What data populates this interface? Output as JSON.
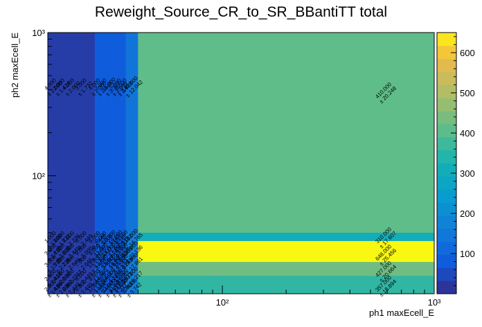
{
  "chart_data": {
    "type": "heatmap",
    "title": "Reweight_Source_CR_to_SR_BBantiTT total",
    "xlabel": "ph1 maxEcell_E",
    "ylabel": "ph2 maxEcell_E",
    "x_scale": "log",
    "y_scale": "log",
    "xlim": [
      15,
      1000
    ],
    "ylim": [
      15,
      1000
    ],
    "x_major_ticks": [
      {
        "value": 100,
        "label": "10²"
      },
      {
        "value": 1000,
        "label": "10³"
      }
    ],
    "y_major_ticks": [
      {
        "value": 100,
        "label": "10²"
      },
      {
        "value": 1000,
        "label": "10³"
      }
    ],
    "colorbar": {
      "min": 0,
      "max": 650,
      "ticks": [
        {
          "value": 100,
          "label": "100"
        },
        {
          "value": 200,
          "label": "200"
        },
        {
          "value": 300,
          "label": "300"
        },
        {
          "value": 400,
          "label": "400"
        },
        {
          "value": 500,
          "label": "500"
        },
        {
          "value": 600,
          "label": "600"
        }
      ]
    },
    "x_edges": [
      15,
      25,
      35,
      40,
      1000
    ],
    "y_edges": [
      15,
      20,
      25,
      30,
      35,
      40,
      1000
    ],
    "cells": [
      {
        "x0": 15,
        "x1": 25,
        "y0": 40,
        "y1": 1000,
        "value": 30
      },
      {
        "x0": 25,
        "x1": 35,
        "y0": 40,
        "y1": 1000,
        "value": 80
      },
      {
        "x0": 35,
        "x1": 40,
        "y0": 40,
        "y1": 1000,
        "value": 140
      },
      {
        "x0": 40,
        "x1": 1000,
        "y0": 40,
        "y1": 1000,
        "value": 410
      },
      {
        "x0": 15,
        "x1": 25,
        "y0": 15,
        "y1": 40,
        "value": 30
      },
      {
        "x0": 25,
        "x1": 35,
        "y0": 15,
        "y1": 40,
        "value": 80
      },
      {
        "x0": 35,
        "x1": 40,
        "y0": 15,
        "y1": 40,
        "value": 160
      },
      {
        "x0": 40,
        "x1": 1000,
        "y0": 35,
        "y1": 40,
        "value": 310
      },
      {
        "x0": 40,
        "x1": 1000,
        "y0": 25,
        "y1": 35,
        "value": 648
      },
      {
        "x0": 40,
        "x1": 1000,
        "y0": 20,
        "y1": 25,
        "value": 427
      },
      {
        "x0": 40,
        "x1": 1000,
        "y0": 15,
        "y1": 20,
        "value": 357
      }
    ],
    "cell_labels": [
      {
        "x": 590,
        "y": 380,
        "value": "410.000",
        "error": "± 20.248"
      },
      {
        "x": 590,
        "y": 37,
        "value": "310.000",
        "error": "± 17.607"
      },
      {
        "x": 590,
        "y": 28,
        "value": "648.000",
        "error": "± 25.456"
      },
      {
        "x": 590,
        "y": 21.5,
        "value": "427.000",
        "error": "± 20.664"
      },
      {
        "x": 590,
        "y": 17,
        "value": "357.000",
        "error": "± 18.894"
      },
      {
        "x": 15.8,
        "y": 420,
        "value": "4.000",
        "error": "± 2.000"
      },
      {
        "x": 17.3,
        "y": 420,
        "value": "2.000",
        "error": "± 1.414"
      },
      {
        "x": 19.2,
        "y": 420,
        "value": "4.000",
        "error": "± 2.000"
      },
      {
        "x": 22,
        "y": 420,
        "value": "3.000",
        "error": "± 1.732"
      },
      {
        "x": 25.5,
        "y": 420,
        "value": "4.000",
        "error": "± 2.000"
      },
      {
        "x": 27.3,
        "y": 420,
        "value": "7.000",
        "error": "± 2.646"
      },
      {
        "x": 29.8,
        "y": 420,
        "value": "11.000",
        "error": "± 3.317"
      },
      {
        "x": 32,
        "y": 420,
        "value": "7.000",
        "error": "± 2.646"
      },
      {
        "x": 34,
        "y": 420,
        "value": "8.000",
        "error": "± 2.828"
      },
      {
        "x": 37.5,
        "y": 420,
        "value": "145.000",
        "error": "± 12.042"
      },
      {
        "x": 15.8,
        "y": 36,
        "value": "1.000",
        "error": "± 1.000"
      },
      {
        "x": 17.3,
        "y": 36,
        "value": "3.000",
        "error": "± 1.732"
      },
      {
        "x": 19.2,
        "y": 36,
        "value": "5.000",
        "error": "± 2.236"
      },
      {
        "x": 22,
        "y": 36,
        "value": "6.000",
        "error": "± 2.449"
      },
      {
        "x": 25.5,
        "y": 36,
        "value": "6.000",
        "error": "± 2.449"
      },
      {
        "x": 27.3,
        "y": 36,
        "value": "9.000",
        "error": "± 3.000"
      },
      {
        "x": 29.8,
        "y": 36,
        "value": "10.000",
        "error": "± 3.162"
      },
      {
        "x": 32,
        "y": 36,
        "value": "10.000",
        "error": "± 3.162"
      },
      {
        "x": 34,
        "y": 36,
        "value": "10.000",
        "error": "± 3.162"
      },
      {
        "x": 37.5,
        "y": 36,
        "value": "218.000",
        "error": "± 14.765"
      },
      {
        "x": 15.8,
        "y": 29.5,
        "value": "3.000",
        "error": "± 1.732"
      },
      {
        "x": 17.3,
        "y": 29.5,
        "value": "4.000",
        "error": "± 2.000"
      },
      {
        "x": 19.2,
        "y": 29.5,
        "value": "6.000",
        "error": "± 2.449"
      },
      {
        "x": 22,
        "y": 29.5,
        "value": "9.000",
        "error": "± 3.000"
      },
      {
        "x": 25.5,
        "y": 29.5,
        "value": "9.000",
        "error": "± 3.000"
      },
      {
        "x": 27.3,
        "y": 29.5,
        "value": "11.000",
        "error": "± 3.317"
      },
      {
        "x": 29.8,
        "y": 29.5,
        "value": "14.000",
        "error": "± 3.742"
      },
      {
        "x": 32,
        "y": 29.5,
        "value": "17.000",
        "error": "± 4.123"
      },
      {
        "x": 34,
        "y": 29.5,
        "value": "19.000",
        "error": "± 4.359"
      },
      {
        "x": 37.5,
        "y": 29.5,
        "value": "490.000",
        "error": "± 22.136"
      },
      {
        "x": 15.8,
        "y": 24.5,
        "value": "3.000",
        "error": "± 1.732"
      },
      {
        "x": 17.3,
        "y": 24.5,
        "value": "5.000",
        "error": "± 2.236"
      },
      {
        "x": 19.2,
        "y": 24.5,
        "value": "7.000",
        "error": "± 2.646"
      },
      {
        "x": 22,
        "y": 24.5,
        "value": "7.000",
        "error": "± 2.646"
      },
      {
        "x": 25.5,
        "y": 24.5,
        "value": "12.000",
        "error": "± 3.464"
      },
      {
        "x": 27.3,
        "y": 24.5,
        "value": "12.000",
        "error": "± 3.464"
      },
      {
        "x": 29.8,
        "y": 24.5,
        "value": "15.000",
        "error": "± 3.873"
      },
      {
        "x": 32,
        "y": 24.5,
        "value": "18.000",
        "error": "± 4.243"
      },
      {
        "x": 34,
        "y": 24.5,
        "value": "18.000",
        "error": "± 4.243"
      },
      {
        "x": 37.5,
        "y": 24.5,
        "value": "319.000",
        "error": "± 17.861"
      },
      {
        "x": 15.8,
        "y": 19.5,
        "value": "2.000",
        "error": "± 1.414"
      },
      {
        "x": 17.3,
        "y": 19.5,
        "value": "4.000",
        "error": "± 2.000"
      },
      {
        "x": 19.2,
        "y": 19.5,
        "value": "5.000",
        "error": "± 2.236"
      },
      {
        "x": 22,
        "y": 19.5,
        "value": "6.000",
        "error": "± 2.449"
      },
      {
        "x": 25.5,
        "y": 19.5,
        "value": "8.000",
        "error": "± 2.828"
      },
      {
        "x": 27.3,
        "y": 19.5,
        "value": "12.000",
        "error": "± 3.464"
      },
      {
        "x": 29.8,
        "y": 19.5,
        "value": "14.000",
        "error": "± 3.742"
      },
      {
        "x": 32,
        "y": 19.5,
        "value": "13.000",
        "error": "± 3.606"
      },
      {
        "x": 34,
        "y": 19.5,
        "value": "15.000",
        "error": "± 3.873"
      },
      {
        "x": 37.5,
        "y": 19.5,
        "value": "263.000",
        "error": "± 16.217"
      },
      {
        "x": 15.8,
        "y": 16.5,
        "value": "2.000",
        "error": "± 1.414"
      },
      {
        "x": 17.3,
        "y": 16.5,
        "value": "4.000",
        "error": "± 2.000"
      },
      {
        "x": 19.2,
        "y": 16.5,
        "value": "6.000",
        "error": "± 2.449"
      },
      {
        "x": 22,
        "y": 16.5,
        "value": "6.000",
        "error": "± 2.449"
      },
      {
        "x": 25.5,
        "y": 16.5,
        "value": "12.000",
        "error": "± 3.464"
      },
      {
        "x": 27.3,
        "y": 16.5,
        "value": "12.000",
        "error": "± 3.464"
      },
      {
        "x": 29.8,
        "y": 16.5,
        "value": "11.000",
        "error": "± 3.317"
      },
      {
        "x": 32,
        "y": 16.5,
        "value": "11.000",
        "error": "± 3.317"
      },
      {
        "x": 34,
        "y": 16.5,
        "value": "14.000",
        "error": "± 3.742"
      },
      {
        "x": 37.5,
        "y": 16.5,
        "value": "14.000",
        "error": "± 3.742"
      }
    ]
  }
}
